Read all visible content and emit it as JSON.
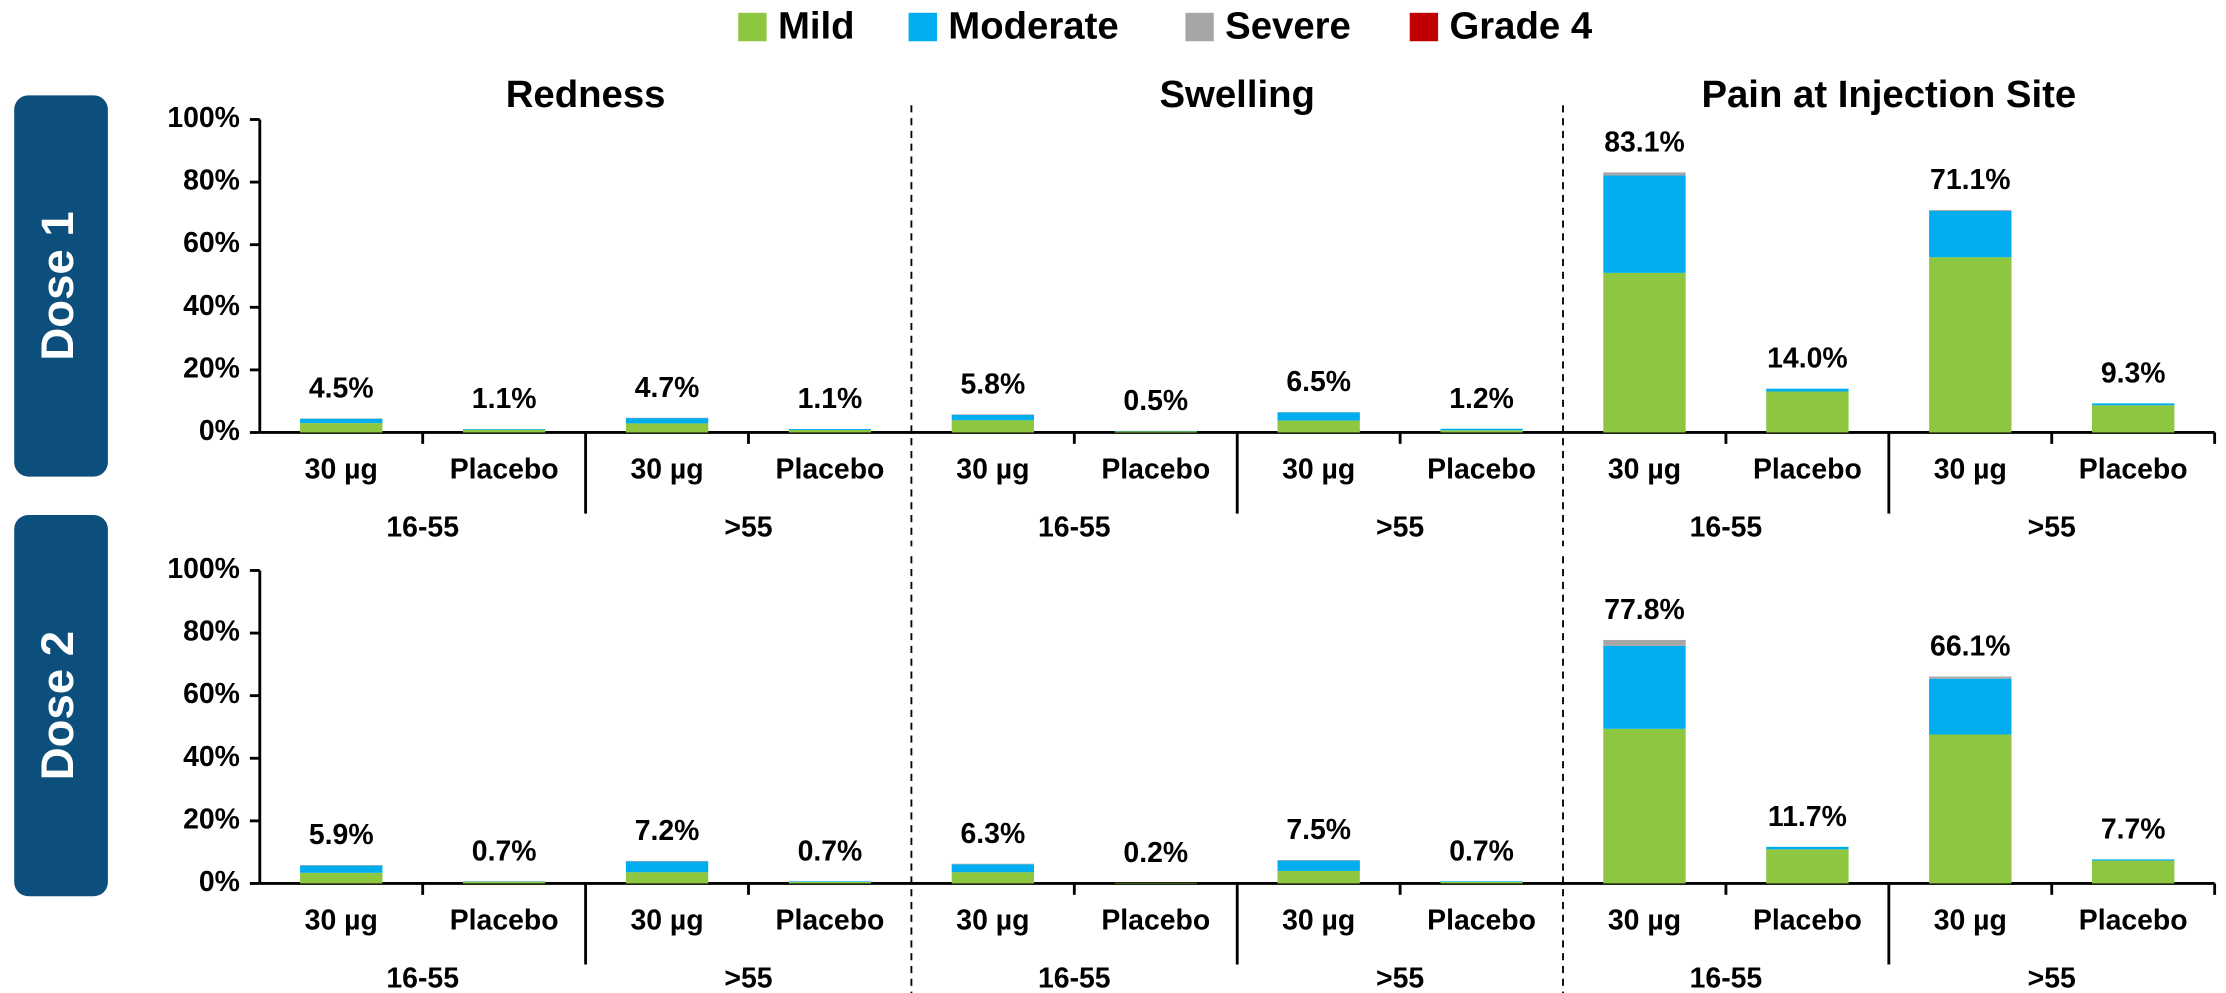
{
  "legend_title": null,
  "chart_data": [
    {
      "type": "bar",
      "stacked": true,
      "title": "Dose 1",
      "panel_titles": [
        "Redness",
        "Swelling",
        "Pain at Injection Site"
      ],
      "categories": [
        "30 µg",
        "Placebo",
        "30 µg",
        "Placebo",
        "30 µg",
        "Placebo",
        "30 µg",
        "Placebo",
        "30 µg",
        "Placebo",
        "30 µg",
        "Placebo"
      ],
      "groups": [
        "16-55",
        ">55",
        "16-55",
        ">55",
        "16-55",
        ">55"
      ],
      "ylim": [
        0,
        100
      ],
      "yticks": [
        {
          "value": 0,
          "label": "0%"
        },
        {
          "value": 20,
          "label": "20%"
        },
        {
          "value": 40,
          "label": "40%"
        },
        {
          "value": 60,
          "label": "60%"
        },
        {
          "value": 80,
          "label": "80%"
        },
        {
          "value": 100,
          "label": "100%"
        }
      ],
      "series": [
        {
          "name": "Mild",
          "color": "#8dc63f",
          "values": [
            3.0,
            0.9,
            2.9,
            0.8,
            3.9,
            0.4,
            3.8,
            0.7,
            51.0,
            13.1,
            56.0,
            8.7
          ]
        },
        {
          "name": "Moderate",
          "color": "#00aeef",
          "values": [
            1.4,
            0.2,
            1.7,
            0.3,
            1.7,
            0.1,
            2.6,
            0.5,
            31.1,
            0.9,
            14.8,
            0.6
          ]
        },
        {
          "name": "Severe",
          "color": "#a6a6a6",
          "values": [
            0.1,
            0,
            0.1,
            0,
            0.2,
            0,
            0.1,
            0,
            1.0,
            0,
            0.3,
            0
          ]
        },
        {
          "name": "Grade 4",
          "color": "#c00000",
          "values": [
            0,
            0,
            0,
            0,
            0,
            0,
            0,
            0,
            0,
            0,
            0,
            0
          ]
        }
      ],
      "totals": [
        4.5,
        1.1,
        4.7,
        1.1,
        5.8,
        0.5,
        6.5,
        1.2,
        83.1,
        14.0,
        71.1,
        9.3
      ],
      "value_labels": [
        "4.5%",
        "1.1%",
        "4.7%",
        "1.1%",
        "5.8%",
        "0.5%",
        "6.5%",
        "1.2%",
        "83.1%",
        "14.0%",
        "71.1%",
        "9.3%"
      ]
    },
    {
      "type": "bar",
      "stacked": true,
      "title": "Dose 2",
      "categories": [
        "30 µg",
        "Placebo",
        "30 µg",
        "Placebo",
        "30 µg",
        "Placebo",
        "30 µg",
        "Placebo",
        "30 µg",
        "Placebo",
        "30 µg",
        "Placebo"
      ],
      "groups": [
        "16-55",
        ">55",
        "16-55",
        ">55",
        "16-55",
        ">55"
      ],
      "ylim": [
        0,
        100
      ],
      "yticks": [
        {
          "value": 0,
          "label": "0%"
        },
        {
          "value": 20,
          "label": "20%"
        },
        {
          "value": 40,
          "label": "40%"
        },
        {
          "value": 60,
          "label": "60%"
        },
        {
          "value": 80,
          "label": "80%"
        },
        {
          "value": 100,
          "label": "100%"
        }
      ],
      "series": [
        {
          "color": "#8dc63f",
          "values": [
            3.4,
            0.6,
            3.6,
            0.5,
            3.6,
            0.2,
            4.0,
            0.5,
            49.4,
            10.9,
            47.6,
            7.3
          ]
        },
        {
          "color": "#00aeef",
          "values": [
            2.3,
            0.1,
            3.4,
            0.2,
            2.5,
            0,
            3.3,
            0.2,
            26.5,
            0.8,
            17.8,
            0.4
          ]
        },
        {
          "color": "#a6a6a6",
          "values": [
            0.2,
            0,
            0.2,
            0,
            0.2,
            0,
            0.2,
            0,
            1.9,
            0,
            0.7,
            0
          ]
        },
        {
          "color": "#c00000",
          "values": [
            0,
            0,
            0,
            0,
            0,
            0,
            0,
            0,
            0,
            0,
            0,
            0
          ]
        }
      ],
      "totals": [
        5.9,
        0.7,
        7.2,
        0.7,
        6.3,
        0.2,
        7.5,
        0.7,
        77.8,
        11.7,
        66.1,
        7.7
      ],
      "value_labels": [
        "5.9%",
        "0.7%",
        "7.2%",
        "0.7%",
        "6.3%",
        "0.2%",
        "7.5%",
        "0.7%",
        "77.8%",
        "11.7%",
        "66.1%",
        "7.7%"
      ]
    }
  ]
}
